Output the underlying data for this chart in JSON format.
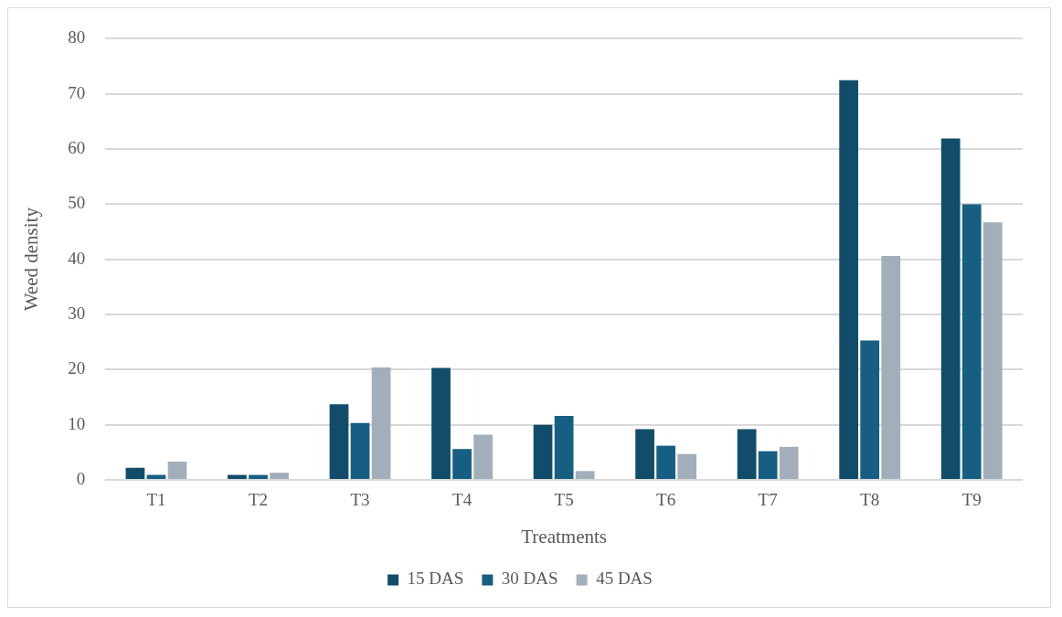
{
  "chart_data": {
    "type": "bar",
    "xlabel": "Treatments",
    "ylabel": "Weed density",
    "categories": [
      "T1",
      "T2",
      "T3",
      "T4",
      "T5",
      "T6",
      "T7",
      "T8",
      "T9"
    ],
    "series": [
      {
        "name": "15 DAS",
        "color": "#114d6a",
        "values": [
          2.2,
          0.9,
          13.7,
          20.3,
          10.0,
          9.2,
          9.2,
          72.5,
          61.9
        ]
      },
      {
        "name": "30 DAS",
        "color": "#165f82",
        "values": [
          0.9,
          0.9,
          10.3,
          5.6,
          11.6,
          6.2,
          5.2,
          25.3,
          50.0
        ]
      },
      {
        "name": "45 DAS",
        "color": "#a2afba",
        "values": [
          3.3,
          1.3,
          20.4,
          8.2,
          1.6,
          4.7,
          6.0,
          40.6,
          46.7
        ]
      }
    ],
    "ylim": [
      0,
      80
    ],
    "yticks": [
      0,
      10,
      20,
      30,
      40,
      50,
      60,
      70,
      80
    ],
    "grid": "y",
    "legend": "bottom"
  }
}
